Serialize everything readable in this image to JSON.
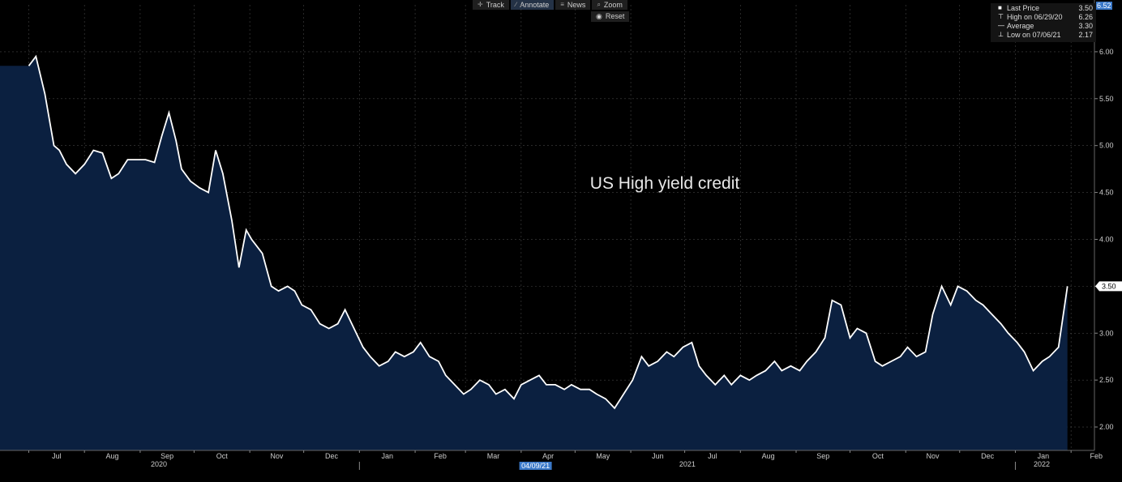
{
  "toolbar": {
    "items": [
      {
        "label": "Track",
        "icon": "crosshair-icon",
        "active": false
      },
      {
        "label": "Annotate",
        "icon": "pencil-icon",
        "active": true
      },
      {
        "label": "News",
        "icon": "news-icon",
        "active": false
      },
      {
        "label": "Zoom",
        "icon": "magnifier-icon",
        "active": false
      }
    ],
    "reset_label": "Reset"
  },
  "legend": {
    "rows": [
      {
        "label": "Last Price",
        "value": "3.50"
      },
      {
        "label": "High on 06/29/20",
        "value": "6.26"
      },
      {
        "label": "Average",
        "value": "3.30"
      },
      {
        "label": "Low on 07/06/21",
        "value": "2.17"
      }
    ]
  },
  "axis_top_value": "6.52",
  "cursor_date": "04/09/21",
  "colors": {
    "line": "#ffffff",
    "fill": "#0b2040",
    "grid": "#444444",
    "highlight": "#3a78c8"
  },
  "chart_data": {
    "type": "area",
    "title": "US High yield credit",
    "ylim": [
      1.75,
      6.5
    ],
    "yticks": [
      "2.00",
      "2.50",
      "3.00",
      "3.50",
      "4.00",
      "4.50",
      "5.00",
      "5.50",
      "6.00"
    ],
    "last_value_label": "3.50",
    "months": [
      "Jul",
      "Aug",
      "Sep",
      "Oct",
      "Nov",
      "Dec",
      "Jan",
      "Feb",
      "Mar",
      "Apr",
      "May",
      "Jun",
      "Jul",
      "Aug",
      "Sep",
      "Oct",
      "Nov",
      "Dec",
      "Jan",
      "Feb"
    ],
    "years": [
      "2020",
      "2021",
      "2022"
    ],
    "grid": true,
    "series": [
      {
        "x": [
          "2020-07-01",
          "2020-07-05",
          "2020-07-10",
          "2020-07-15",
          "2020-07-18",
          "2020-07-22",
          "2020-07-27",
          "2020-08-01",
          "2020-08-06",
          "2020-08-11",
          "2020-08-16",
          "2020-08-20",
          "2020-08-25",
          "2020-08-30",
          "2020-09-04",
          "2020-09-09",
          "2020-09-13",
          "2020-09-17",
          "2020-09-21",
          "2020-09-24",
          "2020-09-29",
          "2020-10-04",
          "2020-10-09",
          "2020-10-13",
          "2020-10-17",
          "2020-10-22",
          "2020-10-26",
          "2020-10-30",
          "2020-11-02",
          "2020-11-04",
          "2020-11-08",
          "2020-11-13",
          "2020-11-17",
          "2020-11-22",
          "2020-11-26",
          "2020-11-30",
          "2020-12-05",
          "2020-12-10",
          "2020-12-15",
          "2020-12-20",
          "2020-12-24",
          "2020-12-29",
          "2021-01-03",
          "2021-01-07",
          "2021-01-12",
          "2021-01-17",
          "2021-01-21",
          "2021-01-26",
          "2021-01-31",
          "2021-02-04",
          "2021-02-09",
          "2021-02-14",
          "2021-02-18",
          "2021-02-23",
          "2021-02-28",
          "2021-03-04",
          "2021-03-09",
          "2021-03-14",
          "2021-03-18",
          "2021-03-23",
          "2021-03-28",
          "2021-04-01",
          "2021-04-06",
          "2021-04-11",
          "2021-04-15",
          "2021-04-20",
          "2021-04-25",
          "2021-04-29",
          "2021-05-04",
          "2021-05-09",
          "2021-05-13",
          "2021-05-18",
          "2021-05-23",
          "2021-05-28",
          "2021-06-02",
          "2021-06-07",
          "2021-06-11",
          "2021-06-16",
          "2021-06-21",
          "2021-06-25",
          "2021-06-30",
          "2021-07-05",
          "2021-07-09",
          "2021-07-13",
          "2021-07-18",
          "2021-07-23",
          "2021-07-27",
          "2021-08-01",
          "2021-08-06",
          "2021-08-10",
          "2021-08-15",
          "2021-08-20",
          "2021-08-24",
          "2021-08-29",
          "2021-09-03",
          "2021-09-07",
          "2021-09-12",
          "2021-09-17",
          "2021-09-21",
          "2021-09-26",
          "2021-10-01",
          "2021-10-05",
          "2021-10-10",
          "2021-10-15",
          "2021-10-19",
          "2021-10-24",
          "2021-10-29",
          "2021-11-02",
          "2021-11-07",
          "2021-11-12",
          "2021-11-16",
          "2021-11-21",
          "2021-11-26",
          "2021-11-30",
          "2021-12-05",
          "2021-12-10",
          "2021-12-14",
          "2021-12-19",
          "2021-12-24",
          "2021-12-28",
          "2022-01-02",
          "2022-01-06",
          "2022-01-11",
          "2022-01-16",
          "2022-01-20",
          "2022-01-25",
          "2022-01-30"
        ],
        "y": [
          5.85,
          5.95,
          5.55,
          5.0,
          4.95,
          4.8,
          4.7,
          4.8,
          4.95,
          4.92,
          4.65,
          4.7,
          4.85,
          4.85,
          4.85,
          4.82,
          5.1,
          5.35,
          5.05,
          4.75,
          4.62,
          4.55,
          4.5,
          4.95,
          4.7,
          4.2,
          3.7,
          4.1,
          4.0,
          3.95,
          3.85,
          3.5,
          3.45,
          3.5,
          3.45,
          3.3,
          3.25,
          3.1,
          3.05,
          3.1,
          3.25,
          3.05,
          2.85,
          2.75,
          2.65,
          2.7,
          2.8,
          2.75,
          2.8,
          2.9,
          2.75,
          2.7,
          2.55,
          2.45,
          2.35,
          2.4,
          2.5,
          2.45,
          2.35,
          2.4,
          2.3,
          2.45,
          2.5,
          2.55,
          2.45,
          2.45,
          2.4,
          2.45,
          2.4,
          2.4,
          2.35,
          2.3,
          2.2,
          2.35,
          2.5,
          2.75,
          2.65,
          2.7,
          2.8,
          2.75,
          2.85,
          2.9,
          2.65,
          2.55,
          2.45,
          2.55,
          2.45,
          2.55,
          2.5,
          2.55,
          2.6,
          2.7,
          2.6,
          2.65,
          2.6,
          2.7,
          2.8,
          2.95,
          3.35,
          3.3,
          2.95,
          3.05,
          3.0,
          2.7,
          2.65,
          2.7,
          2.75,
          2.85,
          2.75,
          2.8,
          3.2,
          3.5,
          3.3,
          3.5,
          3.45,
          3.35,
          3.3,
          3.2,
          3.1,
          3.0,
          2.9,
          2.8,
          2.6,
          2.7,
          2.75,
          2.85,
          3.5
        ]
      }
    ]
  }
}
